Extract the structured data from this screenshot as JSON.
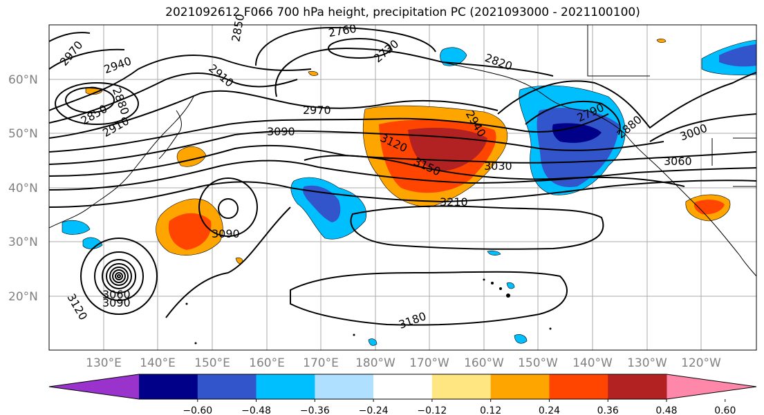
{
  "title": "2021092612 F066 700 hPa height, precipitation PC (2021093000 - 2021100100)",
  "lat_labels": [
    "60°N",
    "50°N",
    "40°N",
    "30°N",
    "20°N"
  ],
  "lon_labels": [
    "130°E",
    "140°E",
    "150°E",
    "160°E",
    "170°E",
    "180°W",
    "170°W",
    "160°W",
    "150°W",
    "140°W",
    "130°W",
    "120°W"
  ],
  "contour_labels": [
    "2970",
    "2940",
    "2880",
    "2850",
    "2910",
    "2760",
    "2730",
    "2820",
    "2910",
    "2850",
    "2970",
    "3090",
    "3120",
    "3150",
    "3210",
    "3030",
    "2940",
    "2790",
    "2880",
    "3000",
    "3060",
    "3090",
    "3060",
    "3090",
    "3120",
    "3180"
  ],
  "colorbar": {
    "colors": [
      "#9933cc",
      "#000088",
      "#3355cc",
      "#00bfff",
      "#b0e0ff",
      "#ffffff",
      "#ffe680",
      "#ffa500",
      "#ff4500",
      "#b22222",
      "#ff88aa"
    ],
    "tick_labels": [
      "−0.60",
      "−0.48",
      "−0.36",
      "−0.24",
      "−0.12",
      "0.12",
      "0.24",
      "0.36",
      "0.48",
      "0.60"
    ]
  }
}
